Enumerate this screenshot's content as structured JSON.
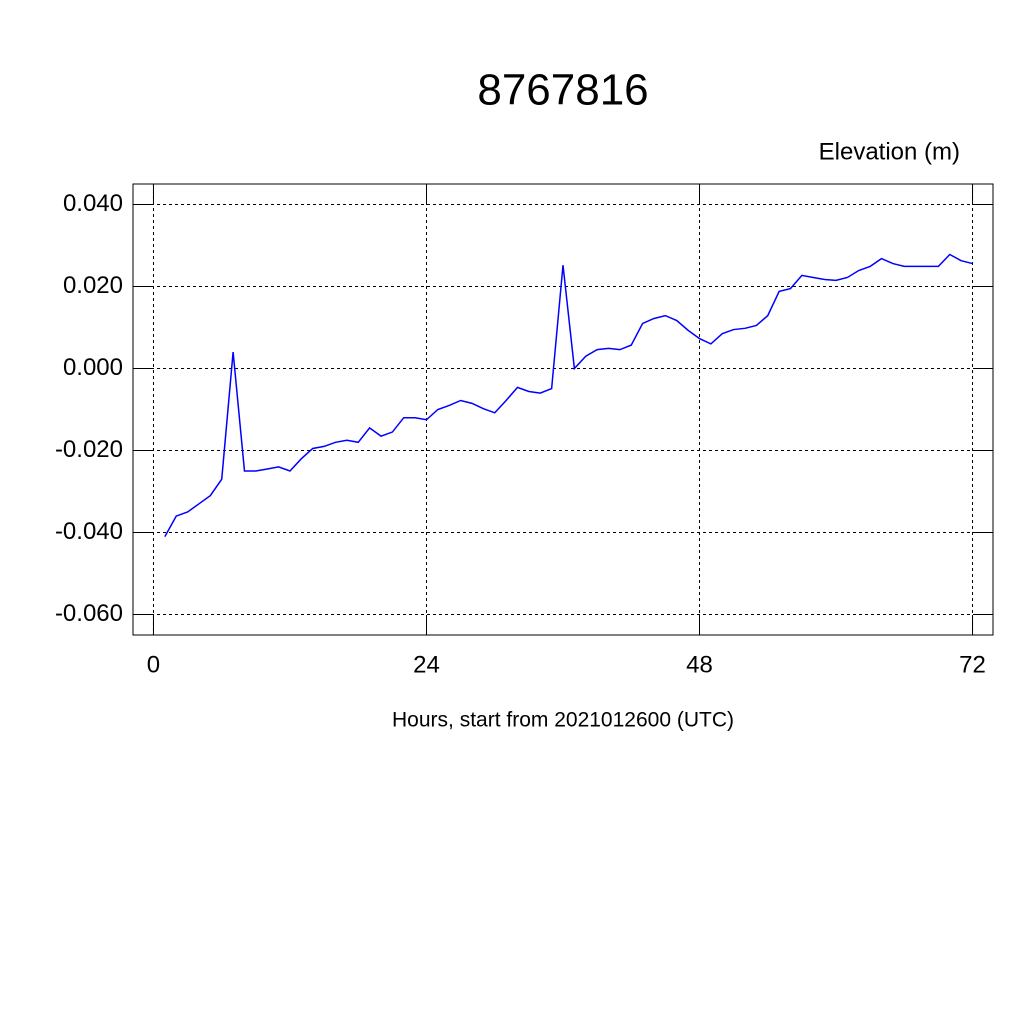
{
  "chart_data": {
    "type": "line",
    "title": "8767816",
    "y_label": "Elevation (m)",
    "x_label": "Hours, start from 2021012600 (UTC)",
    "xlim": [
      -1.8,
      73.8
    ],
    "xticks": [
      0,
      24,
      48,
      72
    ],
    "ylim": [
      -0.065,
      0.045
    ],
    "yticks": [
      {
        "value": -0.06,
        "label": "-0.060"
      },
      {
        "value": -0.04,
        "label": "-0.040"
      },
      {
        "value": -0.02,
        "label": "-0.020"
      },
      {
        "value": 0,
        "label": "0.000"
      },
      {
        "value": 0.02,
        "label": "0.020"
      },
      {
        "value": 0.04,
        "label": "0.040"
      }
    ],
    "grid": true,
    "x": [
      1,
      2,
      3,
      4,
      5,
      6,
      7,
      8,
      9,
      10,
      11,
      12,
      13,
      14,
      15,
      16,
      17,
      18,
      19,
      20,
      21,
      22,
      23,
      24,
      25,
      26,
      27,
      28,
      29,
      30,
      31,
      32,
      33,
      34,
      35,
      36,
      37,
      38,
      39,
      40,
      41,
      42,
      43,
      44,
      45,
      46,
      47,
      48,
      49,
      50,
      51,
      52,
      53,
      54,
      55,
      56,
      57,
      58,
      59,
      60,
      61,
      62,
      63,
      64,
      65,
      66,
      67,
      68,
      69,
      70,
      71,
      72
    ],
    "series": [
      {
        "color": "#0000ff",
        "values": [
          -0.041,
          -0.036,
          -0.035,
          -0.033,
          -0.031,
          -0.027,
          0.004,
          -0.025,
          -0.025,
          -0.0245,
          -0.024,
          -0.025,
          -0.022,
          -0.0195,
          -0.019,
          -0.018,
          -0.0175,
          -0.018,
          -0.0145,
          -0.0165,
          -0.0155,
          -0.012,
          -0.012,
          -0.0125,
          -0.01,
          -0.009,
          -0.0078,
          -0.0085,
          -0.0098,
          -0.0108,
          -0.0078,
          -0.0046,
          -0.0056,
          -0.006,
          -0.0049,
          0.0252,
          0.0,
          0.003,
          0.0046,
          0.0049,
          0.0046,
          0.0057,
          0.011,
          0.0122,
          0.0129,
          0.0117,
          0.0093,
          0.0073,
          0.006,
          0.0085,
          0.0095,
          0.0098,
          0.0105,
          0.0129,
          0.0188,
          0.0195,
          0.0227,
          0.0222,
          0.0217,
          0.0215,
          0.0222,
          0.0239,
          0.0249,
          0.0268,
          0.0256,
          0.0249,
          0.0249,
          0.0249,
          0.0249,
          0.0278,
          0.0263,
          0.0256
        ]
      }
    ]
  }
}
